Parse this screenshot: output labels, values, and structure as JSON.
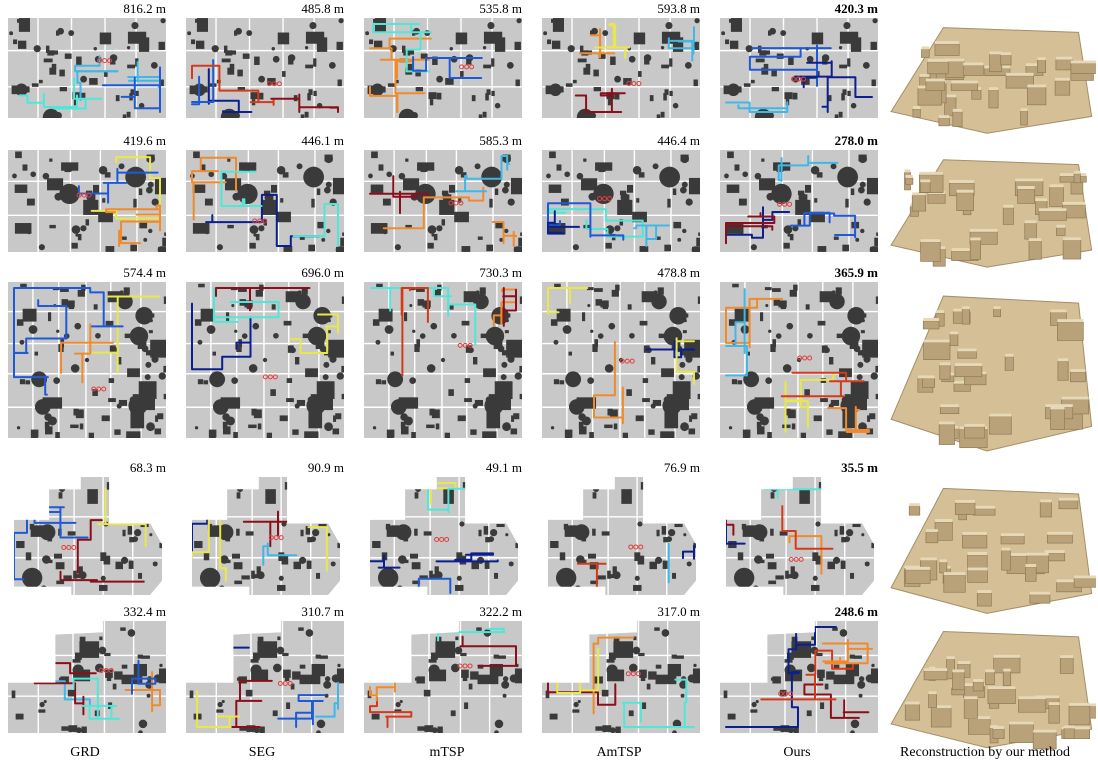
{
  "columns": [
    {
      "label": "GRD"
    },
    {
      "label": "SEG"
    },
    {
      "label": "mTSP"
    },
    {
      "label": "AmTSP"
    },
    {
      "label": "Ours"
    },
    {
      "label": "Reconstruction by our method"
    }
  ],
  "rows": [
    {
      "distances": [
        "816.2 m",
        "485.8 m",
        "535.8 m",
        "593.8 m",
        "420.3 m"
      ],
      "best_index": 4
    },
    {
      "distances": [
        "419.6 m",
        "446.1 m",
        "585.3 m",
        "446.4 m",
        "278.0 m"
      ],
      "best_index": 4
    },
    {
      "distances": [
        "574.4 m",
        "696.0 m",
        "730.3 m",
        "478.8 m",
        "365.9 m"
      ],
      "best_index": 4
    },
    {
      "distances": [
        "68.3 m",
        "90.9 m",
        "49.1 m",
        "76.9 m",
        "35.5 m"
      ],
      "best_index": 4
    },
    {
      "distances": [
        "332.4 m",
        "310.7 m",
        "322.2 m",
        "317.0 m",
        "248.6 m"
      ],
      "best_index": 4
    }
  ],
  "colors": {
    "map_floor": "#c8c8c8",
    "map_obstacle": "#3a3a3a",
    "map_room_line": "#ffffff",
    "reconstruction": "#d4bf96",
    "trajectory_palette": [
      "#0b1f8f",
      "#1f5ad6",
      "#3fb8e8",
      "#4ee8d8",
      "#e8e84a",
      "#f08a2a",
      "#d43a1a",
      "#8b0f1a"
    ]
  }
}
